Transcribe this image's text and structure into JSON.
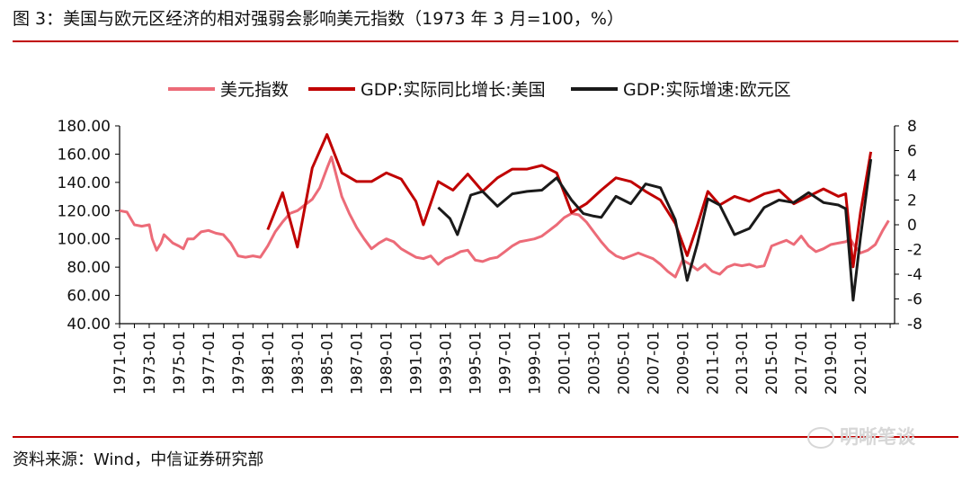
{
  "title": "图 3：美国与欧元区经济的相对强弱会影响美元指数（1973 年 3 月=100，%）",
  "source": "资料来源：Wind，中信证券研究部",
  "watermark": "明晰笔谈",
  "colors": {
    "accent": "#c00000",
    "usd": "#ec6b78",
    "us": "#c00000",
    "eu": "#1a1a1a"
  },
  "chart_data": {
    "type": "line",
    "grid": false,
    "legend_position": "top",
    "x_tick_labels": [
      "1971-01",
      "1973-01",
      "1975-01",
      "1977-01",
      "1979-01",
      "1981-01",
      "1983-01",
      "1985-01",
      "1987-01",
      "1989-01",
      "1991-01",
      "1993-01",
      "1995-01",
      "1997-01",
      "1999-01",
      "2001-01",
      "2003-01",
      "2005-01",
      "2007-01",
      "2009-01",
      "2011-01",
      "2013-01",
      "2015-01",
      "2017-01",
      "2019-01",
      "2021-01"
    ],
    "xlim": [
      1971.0,
      2023.3
    ],
    "y_left": {
      "ylim": [
        40,
        180
      ],
      "ticks": [
        "40.00",
        "60.00",
        "80.00",
        "100.00",
        "120.00",
        "140.00",
        "160.00",
        "180.00"
      ]
    },
    "y_right": {
      "ylim": [
        -8,
        8
      ],
      "ticks": [
        "-8",
        "-6",
        "-4",
        "-2",
        "0",
        "2",
        "4",
        "6",
        "8"
      ]
    },
    "series": [
      {
        "name": "美元指数",
        "axis": "left",
        "points": [
          [
            1971.0,
            120
          ],
          [
            1971.5,
            119
          ],
          [
            1972.0,
            110
          ],
          [
            1972.5,
            109
          ],
          [
            1973.0,
            110
          ],
          [
            1973.2,
            100
          ],
          [
            1973.5,
            92
          ],
          [
            1973.8,
            97
          ],
          [
            1974.0,
            103
          ],
          [
            1974.3,
            100
          ],
          [
            1974.6,
            97
          ],
          [
            1975.0,
            95
          ],
          [
            1975.3,
            93
          ],
          [
            1975.6,
            100
          ],
          [
            1976.0,
            100
          ],
          [
            1976.5,
            105
          ],
          [
            1977.0,
            106
          ],
          [
            1977.5,
            104
          ],
          [
            1978.0,
            103
          ],
          [
            1978.5,
            97
          ],
          [
            1979.0,
            88
          ],
          [
            1979.5,
            87
          ],
          [
            1980.0,
            88
          ],
          [
            1980.5,
            87
          ],
          [
            1981.0,
            95
          ],
          [
            1981.5,
            105
          ],
          [
            1982.0,
            112
          ],
          [
            1982.5,
            118
          ],
          [
            1983.0,
            120
          ],
          [
            1983.5,
            124
          ],
          [
            1984.0,
            128
          ],
          [
            1984.5,
            136
          ],
          [
            1985.0,
            150
          ],
          [
            1985.3,
            158
          ],
          [
            1985.6,
            146
          ],
          [
            1986.0,
            130
          ],
          [
            1986.5,
            118
          ],
          [
            1987.0,
            108
          ],
          [
            1987.5,
            100
          ],
          [
            1988.0,
            93
          ],
          [
            1988.5,
            97
          ],
          [
            1989.0,
            100
          ],
          [
            1989.5,
            98
          ],
          [
            1990.0,
            93
          ],
          [
            1990.5,
            90
          ],
          [
            1991.0,
            87
          ],
          [
            1991.5,
            86
          ],
          [
            1992.0,
            88
          ],
          [
            1992.5,
            82
          ],
          [
            1993.0,
            86
          ],
          [
            1993.5,
            88
          ],
          [
            1994.0,
            91
          ],
          [
            1994.5,
            92
          ],
          [
            1995.0,
            85
          ],
          [
            1995.5,
            84
          ],
          [
            1996.0,
            86
          ],
          [
            1996.5,
            87
          ],
          [
            1997.0,
            91
          ],
          [
            1997.5,
            95
          ],
          [
            1998.0,
            98
          ],
          [
            1998.5,
            99
          ],
          [
            1999.0,
            100
          ],
          [
            1999.5,
            102
          ],
          [
            2000.0,
            106
          ],
          [
            2000.5,
            110
          ],
          [
            2001.0,
            115
          ],
          [
            2001.5,
            118
          ],
          [
            2002.0,
            117
          ],
          [
            2002.5,
            112
          ],
          [
            2003.0,
            105
          ],
          [
            2003.5,
            98
          ],
          [
            2004.0,
            92
          ],
          [
            2004.5,
            88
          ],
          [
            2005.0,
            86
          ],
          [
            2005.5,
            88
          ],
          [
            2006.0,
            90
          ],
          [
            2006.5,
            88
          ],
          [
            2007.0,
            86
          ],
          [
            2007.5,
            82
          ],
          [
            2008.0,
            77
          ],
          [
            2008.5,
            73
          ],
          [
            2009.0,
            85
          ],
          [
            2009.5,
            82
          ],
          [
            2010.0,
            78
          ],
          [
            2010.5,
            82
          ],
          [
            2011.0,
            77
          ],
          [
            2011.5,
            75
          ],
          [
            2012.0,
            80
          ],
          [
            2012.5,
            82
          ],
          [
            2013.0,
            81
          ],
          [
            2013.5,
            82
          ],
          [
            2014.0,
            80
          ],
          [
            2014.5,
            81
          ],
          [
            2015.0,
            95
          ],
          [
            2015.5,
            97
          ],
          [
            2016.0,
            99
          ],
          [
            2016.5,
            96
          ],
          [
            2017.0,
            102
          ],
          [
            2017.5,
            95
          ],
          [
            2018.0,
            91
          ],
          [
            2018.5,
            93
          ],
          [
            2019.0,
            96
          ],
          [
            2019.5,
            97
          ],
          [
            2020.0,
            98
          ],
          [
            2020.3,
            100
          ],
          [
            2020.6,
            95
          ],
          [
            2021.0,
            90
          ],
          [
            2021.5,
            92
          ],
          [
            2022.0,
            96
          ],
          [
            2022.5,
            106
          ],
          [
            2022.9,
            113
          ]
        ]
      },
      {
        "name": "GDP:实际同比增长:美国",
        "axis": "right",
        "points": [
          [
            1981.0,
            -0.4
          ],
          [
            1982.0,
            2.6
          ],
          [
            1983.0,
            -1.8
          ],
          [
            1984.0,
            4.6
          ],
          [
            1985.0,
            7.3
          ],
          [
            1986.0,
            4.2
          ],
          [
            1987.0,
            3.5
          ],
          [
            1988.0,
            3.5
          ],
          [
            1989.0,
            4.2
          ],
          [
            1990.0,
            3.7
          ],
          [
            1991.0,
            1.9
          ],
          [
            1991.5,
            0.0
          ],
          [
            1992.5,
            3.5
          ],
          [
            1993.5,
            2.8
          ],
          [
            1994.5,
            4.1
          ],
          [
            1995.5,
            2.7
          ],
          [
            1996.5,
            3.8
          ],
          [
            1997.5,
            4.5
          ],
          [
            1998.5,
            4.5
          ],
          [
            1999.5,
            4.8
          ],
          [
            2000.5,
            4.2
          ],
          [
            2001.5,
            1.0
          ],
          [
            2002.5,
            1.7
          ],
          [
            2003.5,
            2.8
          ],
          [
            2004.5,
            3.8
          ],
          [
            2005.5,
            3.5
          ],
          [
            2006.5,
            2.7
          ],
          [
            2007.5,
            2.0
          ],
          [
            2008.5,
            0.1
          ],
          [
            2009.3,
            -2.5
          ],
          [
            2010.0,
            0.0
          ],
          [
            2010.7,
            2.7
          ],
          [
            2011.5,
            1.6
          ],
          [
            2012.5,
            2.3
          ],
          [
            2013.5,
            1.9
          ],
          [
            2014.5,
            2.5
          ],
          [
            2015.5,
            2.8
          ],
          [
            2016.5,
            1.7
          ],
          [
            2017.5,
            2.3
          ],
          [
            2018.5,
            2.9
          ],
          [
            2019.5,
            2.3
          ],
          [
            2020.0,
            2.5
          ],
          [
            2020.5,
            -3.4
          ],
          [
            2021.0,
            1.0
          ],
          [
            2021.7,
            5.9
          ]
        ]
      },
      {
        "name": "GDP:实际增速:欧元区",
        "axis": "right",
        "points": [
          [
            1992.5,
            1.4
          ],
          [
            1993.3,
            0.5
          ],
          [
            1993.8,
            -0.8
          ],
          [
            1994.7,
            2.4
          ],
          [
            1995.5,
            2.7
          ],
          [
            1996.5,
            1.5
          ],
          [
            1997.5,
            2.5
          ],
          [
            1998.5,
            2.7
          ],
          [
            1999.5,
            2.8
          ],
          [
            2000.5,
            3.8
          ],
          [
            2001.5,
            2.0
          ],
          [
            2002.3,
            0.9
          ],
          [
            2003.0,
            0.7
          ],
          [
            2003.5,
            0.6
          ],
          [
            2004.5,
            2.3
          ],
          [
            2005.5,
            1.7
          ],
          [
            2006.5,
            3.3
          ],
          [
            2007.5,
            3.0
          ],
          [
            2008.5,
            0.4
          ],
          [
            2009.3,
            -4.5
          ],
          [
            2010.0,
            -1.5
          ],
          [
            2010.7,
            2.1
          ],
          [
            2011.5,
            1.6
          ],
          [
            2012.5,
            -0.8
          ],
          [
            2013.5,
            -0.3
          ],
          [
            2014.5,
            1.4
          ],
          [
            2015.5,
            2.0
          ],
          [
            2016.5,
            1.8
          ],
          [
            2017.5,
            2.6
          ],
          [
            2018.5,
            1.8
          ],
          [
            2019.5,
            1.6
          ],
          [
            2020.0,
            1.3
          ],
          [
            2020.5,
            -6.1
          ],
          [
            2021.0,
            -1.0
          ],
          [
            2021.7,
            5.3
          ]
        ]
      }
    ]
  }
}
